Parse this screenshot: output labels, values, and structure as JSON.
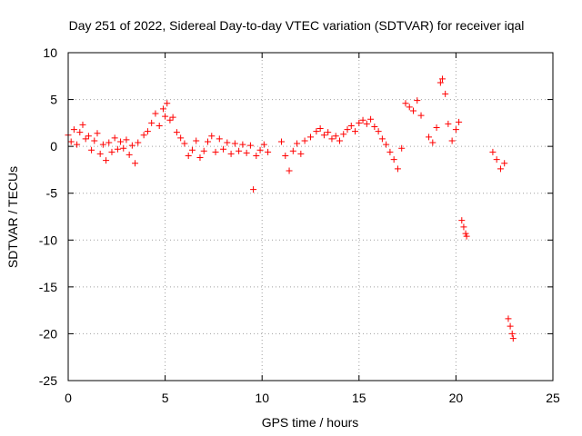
{
  "chart_data": {
    "type": "scatter",
    "title": "Day 251 of 2022, Sidereal Day-to-day VTEC variation (SDTVAR) for receiver iqal",
    "xlabel": "GPS time / hours",
    "ylabel": "SDTVAR / TECUs",
    "xlim": [
      0,
      25
    ],
    "ylim": [
      -25,
      10
    ],
    "xticks": [
      "0",
      "5",
      "10",
      "15",
      "20",
      "25"
    ],
    "yticks": [
      "10",
      "5",
      "0",
      "-5",
      "-10",
      "-15",
      "-20",
      "-25"
    ],
    "xtick_values": [
      0,
      5,
      10,
      15,
      20,
      25
    ],
    "ytick_values": [
      10,
      5,
      0,
      -5,
      -10,
      -15,
      -20,
      -25
    ],
    "grid": true,
    "marker": "+",
    "color": "#ff0000",
    "series": [
      {
        "name": "SDTVAR",
        "points": [
          [
            0.0,
            1.2
          ],
          [
            0.15,
            0.5
          ],
          [
            0.3,
            1.8
          ],
          [
            0.45,
            0.2
          ],
          [
            0.6,
            1.5
          ],
          [
            0.75,
            2.3
          ],
          [
            0.9,
            0.8
          ],
          [
            1.05,
            1.1
          ],
          [
            1.2,
            -0.4
          ],
          [
            1.35,
            0.6
          ],
          [
            1.5,
            1.4
          ],
          [
            1.65,
            -0.8
          ],
          [
            1.8,
            0.2
          ],
          [
            1.95,
            -1.5
          ],
          [
            2.1,
            0.4
          ],
          [
            2.25,
            -0.6
          ],
          [
            2.4,
            0.9
          ],
          [
            2.55,
            -0.3
          ],
          [
            2.7,
            0.5
          ],
          [
            2.85,
            -0.2
          ],
          [
            3.0,
            0.7
          ],
          [
            3.15,
            -0.9
          ],
          [
            3.3,
            0.1
          ],
          [
            3.45,
            -1.8
          ],
          [
            3.6,
            0.4
          ],
          [
            3.9,
            1.2
          ],
          [
            4.1,
            1.6
          ],
          [
            4.3,
            2.5
          ],
          [
            4.5,
            3.5
          ],
          [
            4.7,
            2.2
          ],
          [
            4.9,
            4.0
          ],
          [
            5.0,
            3.2
          ],
          [
            5.1,
            4.6
          ],
          [
            5.25,
            2.8
          ],
          [
            5.4,
            3.1
          ],
          [
            5.6,
            1.5
          ],
          [
            5.8,
            0.9
          ],
          [
            6.0,
            0.3
          ],
          [
            6.2,
            -1.0
          ],
          [
            6.4,
            -0.4
          ],
          [
            6.6,
            0.6
          ],
          [
            6.8,
            -1.2
          ],
          [
            7.0,
            -0.5
          ],
          [
            7.2,
            0.5
          ],
          [
            7.4,
            1.1
          ],
          [
            7.6,
            -0.6
          ],
          [
            7.8,
            0.8
          ],
          [
            8.0,
            -0.3
          ],
          [
            8.2,
            0.4
          ],
          [
            8.4,
            -0.8
          ],
          [
            8.6,
            0.3
          ],
          [
            8.8,
            -0.5
          ],
          [
            9.0,
            0.2
          ],
          [
            9.2,
            -0.7
          ],
          [
            9.4,
            0.1
          ],
          [
            9.55,
            -4.6
          ],
          [
            9.7,
            -1.0
          ],
          [
            9.9,
            -0.4
          ],
          [
            10.1,
            0.2
          ],
          [
            10.3,
            -0.6
          ],
          [
            11.0,
            0.5
          ],
          [
            11.2,
            -1.0
          ],
          [
            11.4,
            -2.6
          ],
          [
            11.6,
            -0.5
          ],
          [
            11.8,
            0.3
          ],
          [
            12.0,
            -0.8
          ],
          [
            12.2,
            0.6
          ],
          [
            12.5,
            1.0
          ],
          [
            12.8,
            1.6
          ],
          [
            13.0,
            1.9
          ],
          [
            13.2,
            1.2
          ],
          [
            13.4,
            1.5
          ],
          [
            13.6,
            0.8
          ],
          [
            13.8,
            1.1
          ],
          [
            14.0,
            0.6
          ],
          [
            14.2,
            1.3
          ],
          [
            14.4,
            1.8
          ],
          [
            14.6,
            2.2
          ],
          [
            14.8,
            1.6
          ],
          [
            15.0,
            2.5
          ],
          [
            15.2,
            2.8
          ],
          [
            15.4,
            2.4
          ],
          [
            15.6,
            2.9
          ],
          [
            15.8,
            2.1
          ],
          [
            16.0,
            1.6
          ],
          [
            16.2,
            0.8
          ],
          [
            16.4,
            0.2
          ],
          [
            16.6,
            -0.6
          ],
          [
            16.8,
            -1.4
          ],
          [
            17.0,
            -2.4
          ],
          [
            17.2,
            -0.2
          ],
          [
            17.4,
            4.6
          ],
          [
            17.6,
            4.2
          ],
          [
            17.8,
            3.8
          ],
          [
            18.0,
            4.9
          ],
          [
            18.2,
            3.3
          ],
          [
            18.6,
            1.0
          ],
          [
            18.8,
            0.4
          ],
          [
            19.0,
            2.0
          ],
          [
            19.2,
            6.8
          ],
          [
            19.3,
            7.2
          ],
          [
            19.45,
            5.6
          ],
          [
            19.6,
            2.4
          ],
          [
            19.8,
            0.6
          ],
          [
            20.0,
            1.8
          ],
          [
            20.15,
            2.6
          ],
          [
            20.3,
            -7.9
          ],
          [
            20.4,
            -8.6
          ],
          [
            20.5,
            -9.3
          ],
          [
            20.55,
            -9.6
          ],
          [
            21.9,
            -0.6
          ],
          [
            22.1,
            -1.4
          ],
          [
            22.3,
            -2.4
          ],
          [
            22.5,
            -1.8
          ],
          [
            22.7,
            -18.4
          ],
          [
            22.8,
            -19.2
          ],
          [
            22.9,
            -20.0
          ],
          [
            22.95,
            -20.5
          ]
        ]
      }
    ]
  }
}
